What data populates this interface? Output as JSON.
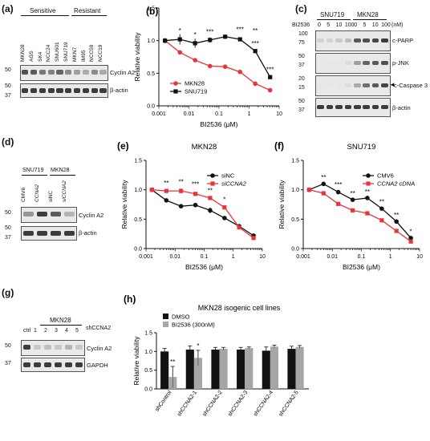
{
  "panels": {
    "a": {
      "letter": "(a)",
      "group_sensitive": "Sensitive",
      "group_resistant": "Resistant",
      "lanes": [
        "MKN28",
        "AGS",
        "SK4",
        "NCC24",
        "SNU601",
        "SNU719",
        "MKN7",
        "IM95",
        "NCC59",
        "NCC19"
      ],
      "markers_top": [
        "50"
      ],
      "markers_bottom": [
        "50",
        "37"
      ],
      "rows": [
        "Cyclin A2",
        "β-actin"
      ]
    },
    "c": {
      "letter": "(c)",
      "treat_label": "BI2536",
      "unit": "(nM)",
      "groups": [
        "SNU719",
        "MKN28"
      ],
      "doses": [
        "0",
        "5",
        "10",
        "100",
        "0",
        "5",
        "10",
        "100"
      ],
      "rows": [
        {
          "label": "c-PARP",
          "markers": [
            "100",
            "75"
          ]
        },
        {
          "label": "p-JNK",
          "markers": [
            "50",
            "37"
          ]
        },
        {
          "label": "c-Caspase 3",
          "markers": [
            "20",
            "15"
          ]
        },
        {
          "label": "β-actin",
          "markers": [
            "50",
            "37"
          ]
        }
      ]
    },
    "d": {
      "letter": "(d)",
      "groups": [
        "SNU719",
        "MKN28"
      ],
      "lanes": [
        "CMV6",
        "CCNA2",
        "siNC",
        "siCCNA2"
      ],
      "markers_top": [
        "50"
      ],
      "markers_bottom": [
        "50",
        "37"
      ],
      "rows": [
        "Cyclin A2",
        "β-actin"
      ]
    },
    "g": {
      "letter": "(g)",
      "group": "MKN28",
      "lanes": [
        "ctrl",
        "1",
        "2",
        "3",
        "4",
        "5"
      ],
      "lane_group_label": "shCCNA2",
      "markers_top": [
        "50"
      ],
      "markers_bottom": [
        "37"
      ],
      "rows": [
        "Cyclin A2",
        "GAPDH"
      ]
    }
  },
  "chart_data": [
    {
      "id": "b",
      "letter": "(b)",
      "type": "line",
      "xscale": "log",
      "xlabel": "BI2536 (μM)",
      "ylabel": "Relative viability",
      "xlim": [
        0.001,
        10
      ],
      "ylim": [
        0.0,
        1.5
      ],
      "xticks": [
        "0.001",
        "0.01",
        "0.1",
        "1",
        "10"
      ],
      "yticks": [
        "0.0",
        "0.5",
        "1.0",
        "1.5"
      ],
      "legend_position": "bottom-left",
      "x": [
        0.0016,
        0.005,
        0.016,
        0.05,
        0.16,
        0.5,
        1.6,
        5
      ],
      "series": [
        {
          "name": "MKN28",
          "color": "#e8353a",
          "marker": "circle",
          "values": [
            1.0,
            0.82,
            0.7,
            0.61,
            0.6,
            0.52,
            0.34,
            0.24
          ],
          "err": [
            0.03,
            0.03,
            0.02,
            0.02,
            0.02,
            0.02,
            0.02,
            0.02
          ]
        },
        {
          "name": "SNU719",
          "color": "#111111",
          "marker": "square",
          "values": [
            1.0,
            1.02,
            0.96,
            1.01,
            1.06,
            1.02,
            0.84,
            0.44
          ],
          "err": [
            0.04,
            0.08,
            0.07,
            0.04,
            0.03,
            0.03,
            0.03,
            0.03
          ]
        }
      ],
      "annotations": [
        "*",
        "*",
        "***",
        "***",
        "**",
        "***",
        "***"
      ],
      "annotation_x": [
        0.005,
        0.016,
        0.05,
        0.5,
        1.6,
        1.6,
        5
      ],
      "annotation_y": [
        1.12,
        1.06,
        1.1,
        1.14,
        1.12,
        0.92,
        0.52
      ]
    },
    {
      "id": "e",
      "letter": "(e)",
      "type": "line",
      "title": "MKN28",
      "xscale": "log",
      "xlabel": "BI2536 (μM)",
      "ylabel": "Relative viability",
      "xlim": [
        0.001,
        10
      ],
      "ylim": [
        0.0,
        1.5
      ],
      "xticks": [
        "0.001",
        "0.01",
        "0.1",
        "1",
        "10"
      ],
      "yticks": [
        "0.0",
        "0.5",
        "1.0",
        "1.5"
      ],
      "legend_position": "top-right",
      "x": [
        0.0016,
        0.005,
        0.016,
        0.05,
        0.16,
        0.5,
        1.6,
        5
      ],
      "series": [
        {
          "name": "siNC",
          "color": "#111111",
          "marker": "circle",
          "values": [
            1.0,
            0.82,
            0.72,
            0.74,
            0.65,
            0.52,
            0.38,
            0.22
          ],
          "err": [
            0.03,
            0.03,
            0.03,
            0.03,
            0.05,
            0.03,
            0.03,
            0.03
          ]
        },
        {
          "name": "siCCNA2",
          "color": "#e8353a",
          "marker": "square",
          "values": [
            1.0,
            0.98,
            0.98,
            0.93,
            0.86,
            0.7,
            0.36,
            0.18
          ],
          "err": [
            0.03,
            0.03,
            0.04,
            0.03,
            0.03,
            0.03,
            0.03,
            0.03
          ]
        }
      ],
      "annotations": [
        "**",
        "**",
        "***",
        "**",
        "*"
      ],
      "annotation_x": [
        0.005,
        0.016,
        0.05,
        0.16,
        0.5
      ],
      "annotation_y": [
        1.08,
        1.1,
        1.06,
        0.95,
        0.8
      ]
    },
    {
      "id": "f",
      "letter": "(f)",
      "type": "line",
      "title": "SNU719",
      "xscale": "log",
      "xlabel": "BI2536 (μM)",
      "ylabel": "Relative viability",
      "xlim": [
        0.001,
        10
      ],
      "ylim": [
        0.0,
        1.5
      ],
      "xticks": [
        "0.001",
        "0.01",
        "0.1",
        "1",
        "10"
      ],
      "yticks": [
        "0.0",
        "0.5",
        "1.0",
        "1.5"
      ],
      "legend_position": "top-right",
      "x": [
        0.0016,
        0.005,
        0.016,
        0.05,
        0.16,
        0.5,
        1.6,
        5
      ],
      "series": [
        {
          "name": "CMV6",
          "color": "#111111",
          "marker": "circle",
          "values": [
            1.0,
            1.1,
            0.96,
            0.83,
            0.86,
            0.68,
            0.46,
            0.18
          ],
          "err": [
            0.03,
            0.03,
            0.03,
            0.03,
            0.03,
            0.03,
            0.02,
            0.02
          ]
        },
        {
          "name": "CCNA2 cDNA",
          "color": "#e8353a",
          "marker": "square",
          "values": [
            1.0,
            0.94,
            0.76,
            0.65,
            0.6,
            0.48,
            0.3,
            0.12
          ],
          "err": [
            0.03,
            0.03,
            0.03,
            0.03,
            0.02,
            0.02,
            0.02,
            0.02
          ]
        }
      ],
      "annotations": [
        "**",
        "***",
        "**",
        "**",
        "**",
        "**",
        "*"
      ],
      "annotation_x": [
        0.005,
        0.016,
        0.05,
        0.16,
        0.5,
        1.6,
        5
      ],
      "annotation_y": [
        1.17,
        1.05,
        0.9,
        0.93,
        0.76,
        0.53,
        0.25
      ]
    },
    {
      "id": "h",
      "letter": "(h)",
      "type": "bar",
      "title": "MKN28 isogenic cell lines",
      "ylabel": "Relative viability",
      "ylim": [
        0.0,
        1.5
      ],
      "yticks": [
        "0.0",
        "0.5",
        "1.0",
        "1.5"
      ],
      "legend_position": "top-left",
      "categories": [
        "shControl",
        "shCCNA2-1",
        "shCCNA2-2",
        "shCCNA2-3",
        "shCCNA2-4",
        "shCCNA2-5"
      ],
      "series": [
        {
          "name": "DMSO",
          "color": "#111111",
          "values": [
            1.0,
            1.05,
            1.05,
            1.05,
            1.02,
            1.07
          ],
          "err": [
            0.08,
            0.1,
            0.06,
            0.06,
            0.1,
            0.07
          ]
        },
        {
          "name": "BI2536 (300nM)",
          "color": "#a6a6a6",
          "values": [
            0.32,
            0.83,
            1.07,
            1.09,
            1.13,
            1.12
          ],
          "err": [
            0.28,
            0.2,
            0.04,
            0.03,
            0.04,
            0.04
          ]
        }
      ],
      "annotations": [
        "**",
        "*"
      ],
      "annotation_index": [
        0,
        1
      ]
    }
  ]
}
